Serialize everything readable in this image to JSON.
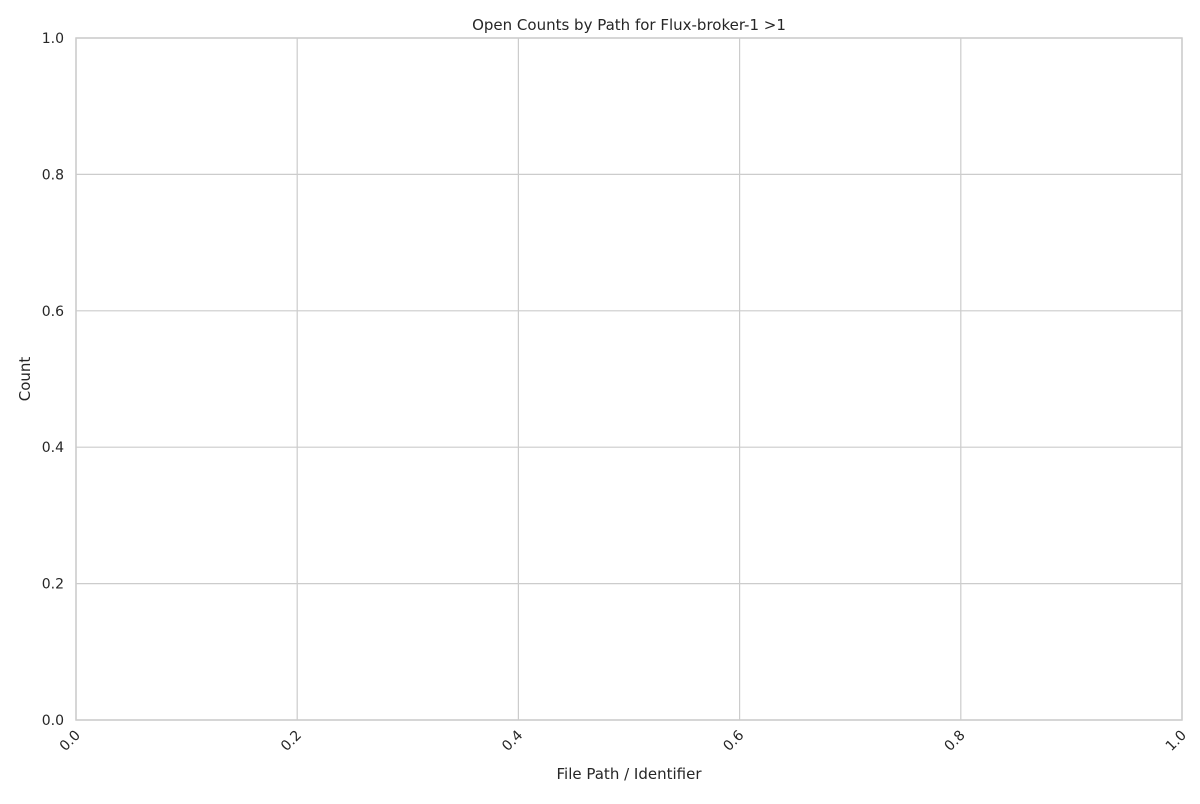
{
  "chart_data": {
    "type": "bar",
    "title": "Open Counts by Path for Flux-broker-1 >1",
    "xlabel": "File Path / Identifier",
    "ylabel": "Count",
    "categories": [],
    "values": [],
    "xlim": [
      0.0,
      1.0
    ],
    "ylim": [
      0.0,
      1.0
    ],
    "x_ticks": [
      "0.0",
      "0.2",
      "0.4",
      "0.6",
      "0.8",
      "1.0"
    ],
    "y_ticks": [
      "0.0",
      "0.2",
      "0.4",
      "0.6",
      "0.8",
      "1.0"
    ],
    "x_tick_rotation": 45,
    "grid": true,
    "colors": {
      "background": "#ffffff",
      "grid": "#cccccc",
      "text": "#262626"
    }
  }
}
